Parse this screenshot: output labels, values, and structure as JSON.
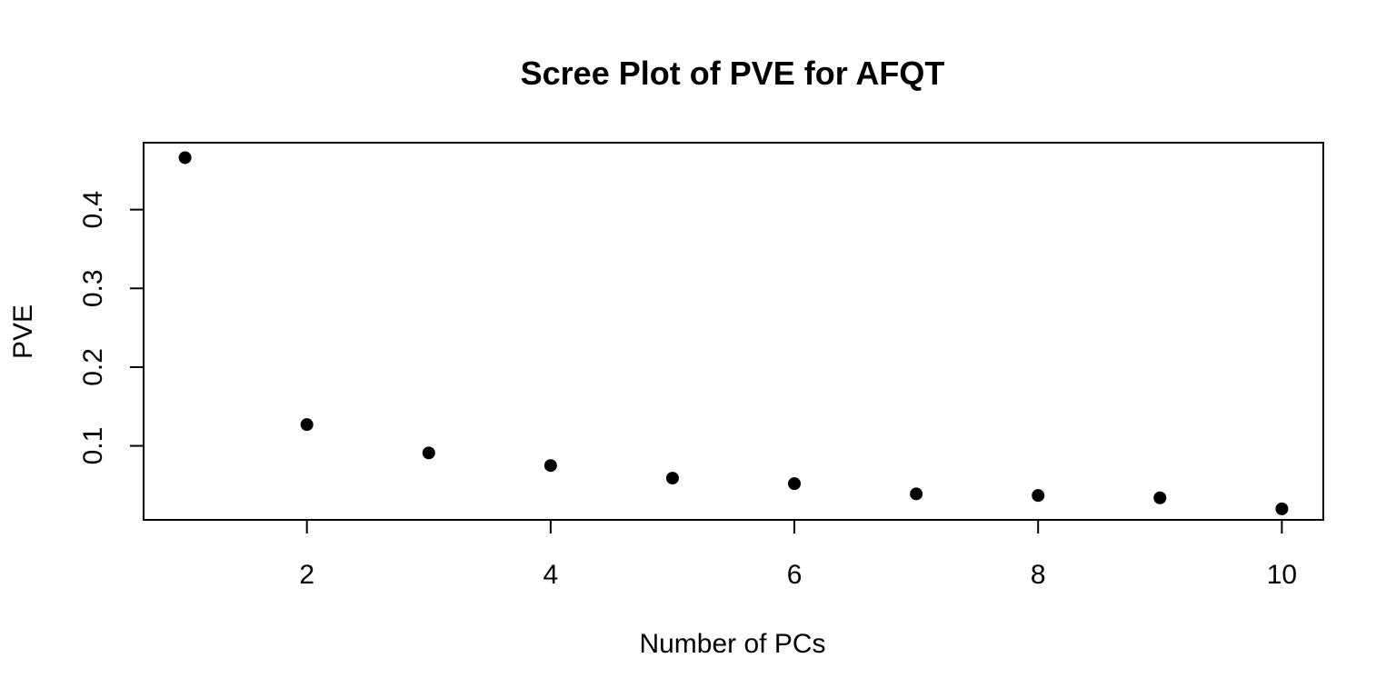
{
  "chart_data": {
    "type": "scatter",
    "title": "Scree Plot of PVE for AFQT",
    "xlabel": "Number of PCs",
    "ylabel": "PVE",
    "xlim": [
      0.66,
      10.34
    ],
    "ylim": [
      0.006,
      0.485
    ],
    "x_ticks": [
      2,
      4,
      6,
      8,
      10
    ],
    "y_ticks": [
      0.1,
      0.2,
      0.3,
      0.4
    ],
    "x_tick_labels": [
      "2",
      "4",
      "6",
      "8",
      "10"
    ],
    "y_tick_labels": [
      "0.1",
      "0.2",
      "0.3",
      "0.4"
    ],
    "grid": false,
    "marker": "filled-circle",
    "point_color": "#000000",
    "series": [
      {
        "x": [
          1,
          2,
          3,
          4,
          5,
          6,
          7,
          8,
          9,
          10
        ],
        "y": [
          0.466,
          0.127,
          0.091,
          0.075,
          0.059,
          0.052,
          0.039,
          0.037,
          0.034,
          0.02
        ]
      }
    ]
  }
}
